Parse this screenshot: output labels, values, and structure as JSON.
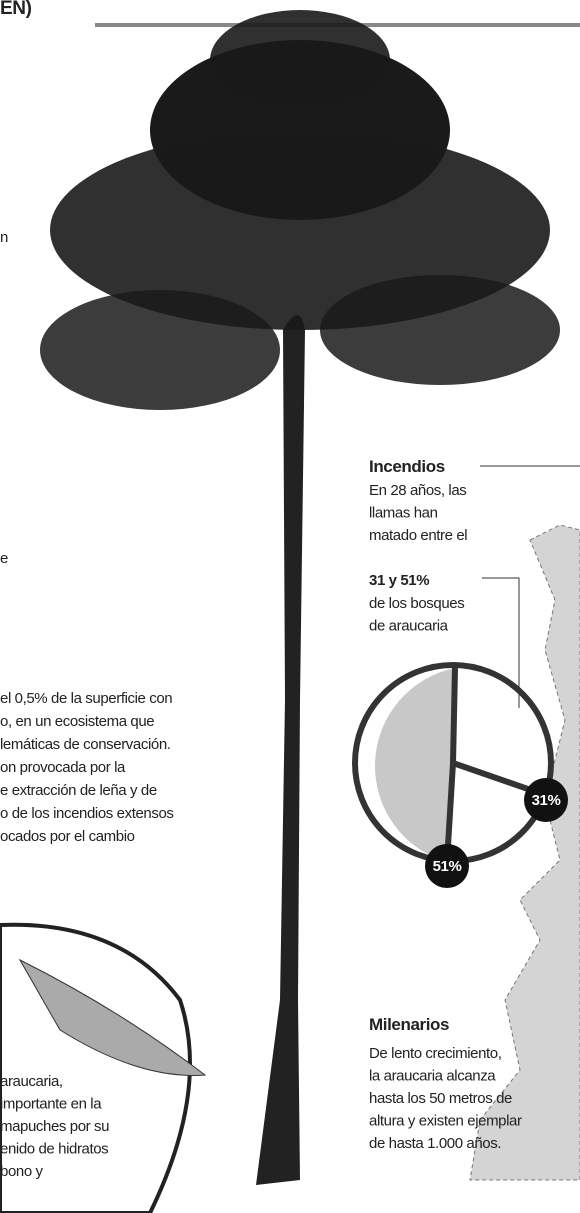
{
  "header": {
    "title": "EN)"
  },
  "fragments": [
    "n",
    "e"
  ],
  "paragraph": {
    "lines": [
      "el 0,5% de la superficie con",
      "o, en un ecosistema que",
      "lemáticas de conservación.",
      "on provocada por la",
      "e extracción de leña y de",
      "o de los incendios extensos",
      "ocados por el cambio"
    ]
  },
  "seed": {
    "lines": [
      "araucaria,",
      "importante en la",
      "mapuches por su",
      "enido de hidratos",
      "bono y"
    ]
  },
  "fires": {
    "title": "Incendios",
    "lines": [
      "En 28 años, las",
      "llamas han",
      "matado entre el"
    ],
    "highlight": "31 y 51%",
    "rest": [
      "de los bosques",
      "de araucaria"
    ],
    "labels": [
      "31%",
      "51%"
    ]
  },
  "ancient": {
    "title": "Milenarios",
    "lines": [
      "De lento crecimiento,",
      "la araucaria alcanza",
      "hasta los 50 metros de",
      "altura y existen ejemplar",
      "de hasta 1.000 años."
    ]
  }
}
